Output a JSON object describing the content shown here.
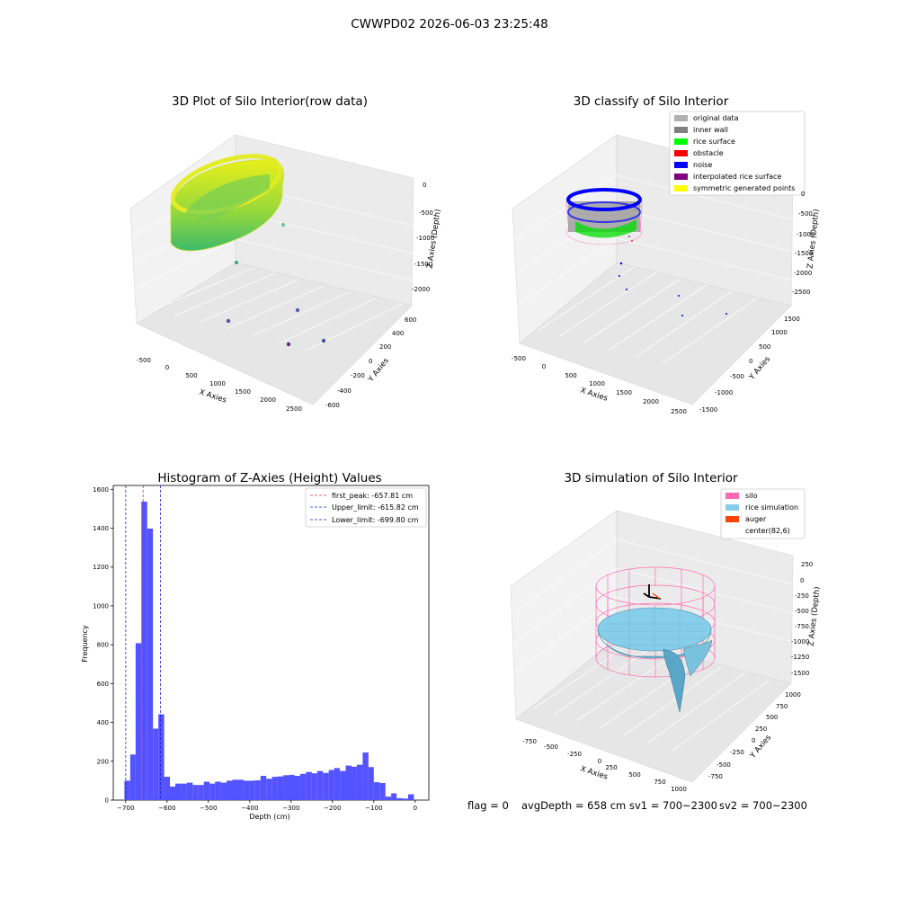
{
  "figure_title": "CWWPD02 2026-06-03 23:25:48",
  "footer": {
    "flag": "flag = 0",
    "avg_depth": "avgDepth = 658 cm",
    "sv1": "sv1 = 700~2300",
    "sv2": "sv2 = 700~2300"
  },
  "colors": {
    "blue_hist": "#4d4dff",
    "peak_line": "#e03030",
    "limit_line": "#2020cc",
    "silo_pink": "#ff69b4",
    "rice_blue": "#87ceeb",
    "auger_orange": "#ff4500",
    "green": "#00ff00",
    "yellow": "#ffff00",
    "purple": "#800080",
    "gray": "#b0b0b0",
    "dark_gray": "#808080",
    "red": "#ff0000",
    "blue": "#0000ff"
  },
  "chart_data": [
    {
      "type": "scatter",
      "subtype": "3d",
      "title": "3D Plot of Silo Interior(row data)",
      "xlabel": "X Axies",
      "ylabel": "Y Axies",
      "zlabel": "Z Axies (Depth)",
      "x_ticks": [
        "-500",
        "0",
        "500",
        "1000",
        "1500",
        "2000",
        "2500"
      ],
      "y_ticks": [
        "-600",
        "-400",
        "-200",
        "0",
        "200",
        "400",
        "600"
      ],
      "z_ticks": [
        "0",
        "-500",
        "-1000",
        "-1500",
        "-2000"
      ],
      "grid": true
    },
    {
      "type": "scatter",
      "subtype": "3d",
      "title": "3D classify of Silo Interior",
      "xlabel": "X Axies",
      "ylabel": "Y Axies",
      "zlabel": "Z Axies (Depth)",
      "x_ticks": [
        "-500",
        "0",
        "500",
        "1000",
        "1500",
        "2000",
        "2500"
      ],
      "y_ticks": [
        "-1500",
        "-1000",
        "-500",
        "0",
        "500",
        "1000",
        "1500"
      ],
      "z_ticks": [
        "0",
        "-500",
        "-1000",
        "-1500",
        "-2000",
        "-2500"
      ],
      "legend_position": "top-right",
      "legend": [
        {
          "label": "original data",
          "color": "#b0b0b0"
        },
        {
          "label": "inner wall",
          "color": "#808080"
        },
        {
          "label": "rice surface",
          "color": "#00ff00"
        },
        {
          "label": "obstacle",
          "color": "#ff0000"
        },
        {
          "label": "noise",
          "color": "#0000ff"
        },
        {
          "label": "interpolated rice surface",
          "color": "#800080"
        },
        {
          "label": "symmetric generated points",
          "color": "#ffff00"
        }
      ],
      "grid": true
    },
    {
      "type": "bar",
      "subtype": "histogram",
      "title": "Histogram of Z-Axies (Height) Values",
      "xlabel": "Depth (cm)",
      "ylabel": "Frequency",
      "xlim": [
        -730,
        33
      ],
      "ylim": [
        0,
        1620
      ],
      "x_ticks": [
        -700,
        -600,
        -500,
        -400,
        -300,
        -200,
        -100,
        0
      ],
      "y_ticks": [
        0,
        200,
        400,
        600,
        800,
        1000,
        1200,
        1400,
        1600
      ],
      "bins": [
        {
          "x0": -703,
          "x1": -689,
          "count": 100
        },
        {
          "x0": -689,
          "x1": -676,
          "count": 235
        },
        {
          "x0": -676,
          "x1": -662,
          "count": 808
        },
        {
          "x0": -662,
          "x1": -648,
          "count": 1537
        },
        {
          "x0": -648,
          "x1": -634,
          "count": 1398
        },
        {
          "x0": -634,
          "x1": -621,
          "count": 368
        },
        {
          "x0": -621,
          "x1": -607,
          "count": 442
        },
        {
          "x0": -607,
          "x1": -593,
          "count": 120
        },
        {
          "x0": -593,
          "x1": -580,
          "count": 70
        },
        {
          "x0": -580,
          "x1": -566,
          "count": 85
        },
        {
          "x0": -566,
          "x1": -552,
          "count": 85
        },
        {
          "x0": -552,
          "x1": -538,
          "count": 90
        },
        {
          "x0": -538,
          "x1": -525,
          "count": 78
        },
        {
          "x0": -525,
          "x1": -511,
          "count": 78
        },
        {
          "x0": -511,
          "x1": -497,
          "count": 95
        },
        {
          "x0": -497,
          "x1": -484,
          "count": 85
        },
        {
          "x0": -484,
          "x1": -470,
          "count": 95
        },
        {
          "x0": -470,
          "x1": -456,
          "count": 90
        },
        {
          "x0": -456,
          "x1": -442,
          "count": 100
        },
        {
          "x0": -442,
          "x1": -429,
          "count": 105
        },
        {
          "x0": -429,
          "x1": -415,
          "count": 105
        },
        {
          "x0": -415,
          "x1": -401,
          "count": 100
        },
        {
          "x0": -401,
          "x1": -388,
          "count": 100
        },
        {
          "x0": -388,
          "x1": -374,
          "count": 102
        },
        {
          "x0": -374,
          "x1": -360,
          "count": 125
        },
        {
          "x0": -360,
          "x1": -346,
          "count": 110
        },
        {
          "x0": -346,
          "x1": -333,
          "count": 120
        },
        {
          "x0": -333,
          "x1": -319,
          "count": 122
        },
        {
          "x0": -319,
          "x1": -305,
          "count": 128
        },
        {
          "x0": -305,
          "x1": -292,
          "count": 130
        },
        {
          "x0": -292,
          "x1": -278,
          "count": 125
        },
        {
          "x0": -278,
          "x1": -264,
          "count": 135
        },
        {
          "x0": -264,
          "x1": -250,
          "count": 145
        },
        {
          "x0": -250,
          "x1": -237,
          "count": 138
        },
        {
          "x0": -237,
          "x1": -223,
          "count": 150
        },
        {
          "x0": -223,
          "x1": -209,
          "count": 140
        },
        {
          "x0": -209,
          "x1": -196,
          "count": 155
        },
        {
          "x0": -196,
          "x1": -182,
          "count": 165
        },
        {
          "x0": -182,
          "x1": -168,
          "count": 150
        },
        {
          "x0": -168,
          "x1": -154,
          "count": 178
        },
        {
          "x0": -154,
          "x1": -141,
          "count": 172
        },
        {
          "x0": -141,
          "x1": -127,
          "count": 182
        },
        {
          "x0": -127,
          "x1": -113,
          "count": 245
        },
        {
          "x0": -113,
          "x1": -100,
          "count": 170
        },
        {
          "x0": -100,
          "x1": -86,
          "count": 92
        },
        {
          "x0": -86,
          "x1": -72,
          "count": 88
        },
        {
          "x0": -72,
          "x1": -58,
          "count": 18
        },
        {
          "x0": -58,
          "x1": -45,
          "count": 35
        },
        {
          "x0": -45,
          "x1": -31,
          "count": 10
        },
        {
          "x0": -31,
          "x1": -17,
          "count": 8
        },
        {
          "x0": -17,
          "x1": -3,
          "count": 30
        }
      ],
      "vlines": [
        {
          "label": "first_peak: -657.81 cm",
          "x": -657.81,
          "color": "#e03030"
        },
        {
          "label": "Upper_limit: -615.82 cm",
          "x": -615.82,
          "color": "#2020cc"
        },
        {
          "label": "Lower_limit: -699.80 cm",
          "x": -699.8,
          "color": "#2020cc"
        }
      ],
      "legend_position": "top-right"
    },
    {
      "type": "area",
      "subtype": "3d surface",
      "title": "3D simulation of Silo Interior",
      "xlabel": "X Axies",
      "ylabel": "Y Axies",
      "zlabel": "Z Axies (Depth)",
      "x_ticks": [
        "-750",
        "-500",
        "-250",
        "0",
        "250",
        "500",
        "750",
        "1000"
      ],
      "y_ticks": [
        "-750",
        "-500",
        "-250",
        "0",
        "250",
        "500",
        "750",
        "1000"
      ],
      "z_ticks": [
        "250",
        "0",
        "-250",
        "-500",
        "-750",
        "-1000",
        "-1250",
        "-1500"
      ],
      "legend_position": "top-right",
      "legend": [
        {
          "label": "silo",
          "color": "#ff69b4"
        },
        {
          "label": "rice simulation",
          "color": "#87ceeb"
        },
        {
          "label": "auger",
          "color": "#ff4500"
        },
        {
          "label": "center(82,6)",
          "color": "#ffffff"
        }
      ],
      "grid": true
    }
  ]
}
